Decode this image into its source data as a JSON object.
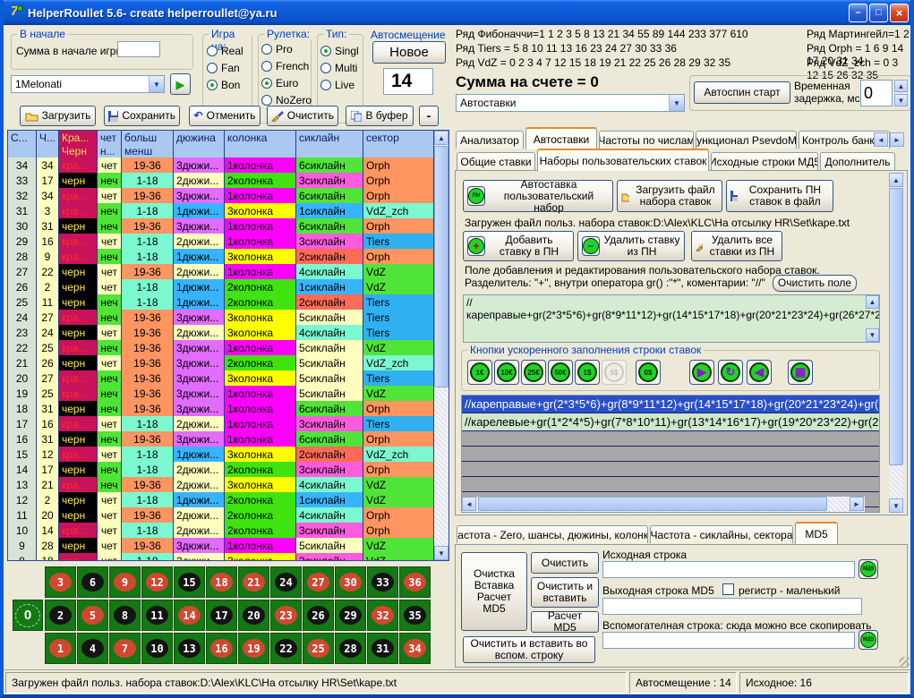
{
  "titlebar": {
    "title": "HelperRoullet 5.6- create helperroullet@ya.ru"
  },
  "start_group": {
    "title": "В начале",
    "sum_label": "Сумма в начале игры",
    "sum_value": ""
  },
  "strategy": {
    "value": "1Melonati"
  },
  "game_on": {
    "title": "Игра на:",
    "options": [
      "Real",
      "Fan",
      "Bon"
    ],
    "selected": "Bon"
  },
  "wheel": {
    "title": "Рулетка:",
    "options": [
      "Pro",
      "French",
      "Euro",
      "NoZero"
    ],
    "selected": "Euro"
  },
  "rtype": {
    "title": "Тип:",
    "options": [
      "Singl",
      "Multi",
      "Live"
    ],
    "selected": "Singl"
  },
  "autoshift": {
    "title": "Автосмещение",
    "new_button": "Новое",
    "value": "14"
  },
  "toolbar": {
    "load": "Загрузить",
    "save": "Сохранить",
    "undo": "Отменить",
    "clear": "Очистить",
    "to_buffer": "В буфер",
    "collapse": "-"
  },
  "series": {
    "fibonacci": "Ряд Фибоначчи=1 1 2 3 5 8 13 21 34 55 89 144 233 377 610",
    "martingale": "Ряд Мартингейл=1 2 4 8 16 32 64 128 2",
    "tiers": "Ряд Tiers = 5 8 10 11 13 16 23 24 27 30 33 36",
    "orph": "Ряд Orph = 1 6 9 14 17 20 31 34",
    "vdz": "Ряд VdZ = 0 2 3 4 7 12 15 18 19 21 22 25 26 28 29 32 35",
    "vdz_zch": "Ряд VdZ_zch = 0 3 12 15 26 32 35"
  },
  "account": {
    "sum_text": "Сумма на счете = 0",
    "mode_value": "Автоставки",
    "autospin_button": "Автоспин старт",
    "delay_label": "Временная задержка, мс",
    "delay_value": "0"
  },
  "main_tabs": {
    "items": [
      "Анализатор",
      "Автоставки",
      "Частоты по числам",
      "Функционал PsevdoMS",
      "Контроль банкро"
    ],
    "active": "Автоставки"
  },
  "sub_tabs": {
    "items": [
      "Общие ставки",
      "Наборы пользовательских ставок",
      "Исходные строки МД5",
      "Дополнитель"
    ],
    "active": "Наборы пользовательских ставок"
  },
  "pn_panel": {
    "autostake_button": "Автоставка пользовательский набор",
    "load_button": "Загрузить файл набора ставок",
    "save_button": "Сохранить ПН ставок в файл",
    "loaded_file_text": "Загружен файл польз. набора ставок:D:\\Alex\\KLC\\На отсылку HR\\Set\\kape.txt",
    "add_button": "Добавить ставку в ПН",
    "remove_button": "Удалить ставку из ПН",
    "remove_all_button": "Удалить все ставки из ПН",
    "edit_hint1": "Поле добавления и редактирования пользовательского набора ставок.",
    "edit_hint2": "Разделитель: \"+\", внутри оператора gr() :\"*\", коментарии: \"//\"",
    "clear_field_button": "Очистить поле",
    "editor_text": "//кареправые+gr(2*3*5*6)+gr(8*9*11*12)+gr(14*15*17*18)+gr(20*21*23*24)+gr(26*27*29*30)+gr(32*33*35*36)",
    "chips_group_title": "Кнопки ускоренного заполнения строки ставок",
    "chips": [
      {
        "label": "1€",
        "disabled": false
      },
      {
        "label": "10€",
        "disabled": false
      },
      {
        "label": "25€",
        "disabled": false
      },
      {
        "label": "50€",
        "disabled": false
      },
      {
        "label": "1$",
        "disabled": false
      },
      {
        "label": "5$",
        "disabled": true
      },
      {
        "label": "0$",
        "disabled": false
      }
    ],
    "action_icons": [
      "play",
      "refresh",
      "back",
      "numbers-board"
    ],
    "list_rows": [
      {
        "text": "//кареправые+gr(2*3*5*6)+gr(8*9*11*12)+gr(14*15*17*18)+gr(20*21*23*24)+gr(2",
        "selected": true
      },
      {
        "text": "//карелевые+gr(1*2*4*5)+gr(7*8*10*11)+gr(13*14*16*17)+gr(19*20*23*22)+gr(25",
        "selected": false
      }
    ],
    "empty_rows": 5
  },
  "freq_tabs": {
    "items": [
      "Частота - Zero, шансы, дюжины, колонки",
      "Частота - сиклайны, сектора",
      "MD5"
    ],
    "active": "MD5"
  },
  "md5_panel": {
    "big_button": "Очистка Вставка Расчет MD5",
    "clear_button": "Очистить",
    "clear_paste_button": "Очистить и вставить",
    "calc_button": "Расчет MD5",
    "source_label": "Исходная строка",
    "source_value": "",
    "output_label": "Выходная строка MD5",
    "output_value": "",
    "case_checkbox_label": "регистр  - маленький",
    "case_checked": false,
    "aux_label": "Вспомогателная строка: сюда можно все скопировать",
    "aux_value": "",
    "clear_paste_aux_button": "Очистить и  вставить во вспом. строку"
  },
  "statusbar": {
    "left": "Загружен файл польз. набора ставок:D:\\Alex\\KLC\\На отсылку HR\\Set\\kape.txt",
    "autoshift": "Автосмещение : 14",
    "source": "Исходное: 16"
  },
  "history_table": {
    "headers_row1": [
      "С...",
      "Ч...",
      "Кра...",
      "чет",
      "больш",
      "дюжина",
      "колонка",
      "сиклайн",
      "сектор"
    ],
    "headers_row2": [
      "",
      "",
      "Черн",
      "н...",
      "менш",
      "",
      "",
      "",
      ""
    ],
    "red_label": "кра...",
    "black_label": "черн",
    "rows": [
      [
        34,
        34,
        "red",
        "чет",
        "19-36",
        "3дюжи...",
        "1колонка",
        "6сиклайн",
        "Orph"
      ],
      [
        33,
        17,
        "black",
        "неч",
        "1-18",
        "2дюжи...",
        "2колонка",
        "3сиклайн",
        "Orph"
      ],
      [
        32,
        34,
        "red",
        "чет",
        "19-36",
        "3дюжи...",
        "1колонка",
        "6сиклайн",
        "Orph"
      ],
      [
        31,
        3,
        "red",
        "неч",
        "1-18",
        "1дюжи...",
        "3колонка",
        "1сиклайн",
        "VdZ_zch"
      ],
      [
        30,
        31,
        "black",
        "неч",
        "19-36",
        "3дюжи...",
        "1колонка",
        "6сиклайн",
        "Orph"
      ],
      [
        29,
        16,
        "red",
        "чет",
        "1-18",
        "2дюжи...",
        "1колонка",
        "3сиклайн",
        "Tiers"
      ],
      [
        28,
        9,
        "red",
        "неч",
        "1-18",
        "1дюжи...",
        "3колонка",
        "2сиклайн",
        "Orph"
      ],
      [
        27,
        22,
        "black",
        "чет",
        "19-36",
        "2дюжи...",
        "1колонка",
        "4сиклайн",
        "VdZ"
      ],
      [
        26,
        2,
        "black",
        "чет",
        "1-18",
        "1дюжи...",
        "2колонка",
        "1сиклайн",
        "VdZ"
      ],
      [
        25,
        11,
        "black",
        "неч",
        "1-18",
        "1дюжи...",
        "2колонка",
        "2сиклайн",
        "Tiers"
      ],
      [
        24,
        27,
        "red",
        "неч",
        "19-36",
        "3дюжи...",
        "3колонка",
        "5сиклайн",
        "Tiers"
      ],
      [
        23,
        24,
        "black",
        "чет",
        "19-36",
        "2дюжи...",
        "3колонка",
        "4сиклайн",
        "Tiers"
      ],
      [
        22,
        25,
        "red",
        "неч",
        "19-36",
        "3дюжи...",
        "1колонка",
        "5сиклайн",
        "VdZ"
      ],
      [
        21,
        26,
        "black",
        "чет",
        "19-36",
        "3дюжи...",
        "2колонка",
        "5сиклайн",
        "VdZ_zch"
      ],
      [
        20,
        27,
        "red",
        "неч",
        "19-36",
        "3дюжи...",
        "3колонка",
        "5сиклайн",
        "Tiers"
      ],
      [
        19,
        25,
        "red",
        "неч",
        "19-36",
        "3дюжи...",
        "1колонка",
        "5сиклайн",
        "VdZ"
      ],
      [
        18,
        31,
        "black",
        "неч",
        "19-36",
        "3дюжи...",
        "1колонка",
        "6сиклайн",
        "Orph"
      ],
      [
        17,
        16,
        "red",
        "чет",
        "1-18",
        "2дюжи...",
        "1колонка",
        "3сиклайн",
        "Tiers"
      ],
      [
        16,
        31,
        "black",
        "неч",
        "19-36",
        "3дюжи...",
        "1колонка",
        "6сиклайн",
        "Orph"
      ],
      [
        15,
        12,
        "red",
        "чет",
        "1-18",
        "1дюжи...",
        "3колонка",
        "2сиклайн",
        "VdZ_zch"
      ],
      [
        14,
        17,
        "black",
        "неч",
        "1-18",
        "2дюжи...",
        "2колонка",
        "3сиклайн",
        "Orph"
      ],
      [
        13,
        21,
        "red",
        "неч",
        "19-36",
        "2дюжи...",
        "3колонка",
        "4сиклайн",
        "VdZ"
      ],
      [
        12,
        2,
        "black",
        "чет",
        "1-18",
        "1дюжи...",
        "2колонка",
        "1сиклайн",
        "VdZ"
      ],
      [
        11,
        20,
        "black",
        "чет",
        "19-36",
        "2дюжи...",
        "2колонка",
        "4сиклайн",
        "Orph"
      ],
      [
        10,
        14,
        "red",
        "чет",
        "1-18",
        "2дюжи...",
        "2колонка",
        "3сиклайн",
        "Orph"
      ],
      [
        9,
        28,
        "black",
        "чет",
        "19-36",
        "3дюжи...",
        "1колонка",
        "5сиклайн",
        "VdZ"
      ],
      [
        8,
        18,
        "red",
        "чет",
        "1-18",
        "2дюжи...",
        "3колонка",
        "3сиклайн",
        "VdZ"
      ]
    ]
  },
  "board": {
    "zero": "0",
    "rows": [
      [
        3,
        6,
        9,
        12,
        15,
        18,
        21,
        24,
        27,
        30,
        33,
        36
      ],
      [
        2,
        5,
        8,
        11,
        14,
        17,
        20,
        23,
        26,
        29,
        32,
        35
      ],
      [
        1,
        4,
        7,
        10,
        13,
        16,
        19,
        22,
        25,
        28,
        31,
        34
      ]
    ],
    "red_numbers": [
      1,
      3,
      5,
      7,
      9,
      12,
      14,
      16,
      18,
      19,
      21,
      23,
      25,
      27,
      30,
      32,
      34,
      36
    ]
  },
  "colors": {
    "cell": {
      "чет": "#FFFFBE",
      "неч": "#50E438",
      "1-18": "#7CF8D0",
      "19-36": "#FF9560",
      "1дюжи...": "#38B4FF",
      "2дюжи...": "#FFFFBE",
      "3дюжи...": "#E26CFF",
      "1колонка": "#FF00FF",
      "2колонка": "#3FE410",
      "3колонка": "#FFFF00",
      "1сиклайн": "#38B4FF",
      "2сиклайн": "#FF6B57",
      "3сиклайн": "#FF5BDE",
      "4сиклайн": "#7CF8D0",
      "5сиклайн": "#FFFFBE",
      "6сиклайн": "#50E438",
      "Orph": "#FF9560",
      "Tiers": "#2FB0F0",
      "VdZ": "#50E438",
      "VdZ_zch": "#7CF8D0"
    },
    "spin_col": "#D6E4D6",
    "num_col": "#FFFFBE",
    "red_cell_bg": "#C8125C",
    "red_cell_text": "#FF3014",
    "black_cell_bg": "#000000",
    "black_cell_text": "#FFE93C",
    "header_red_bg": "#C8125C",
    "header_red_text": "#E8E040",
    "board_red": "#D04830",
    "board_black": "#141414",
    "list_selected_bg": "#2A50C8",
    "list_selected_text": "#FFFFFF",
    "list_green_bg": "#CFE7CB",
    "list_gray_bg": "#A8A8A8",
    "editor_bg": "#D5EBD2"
  }
}
